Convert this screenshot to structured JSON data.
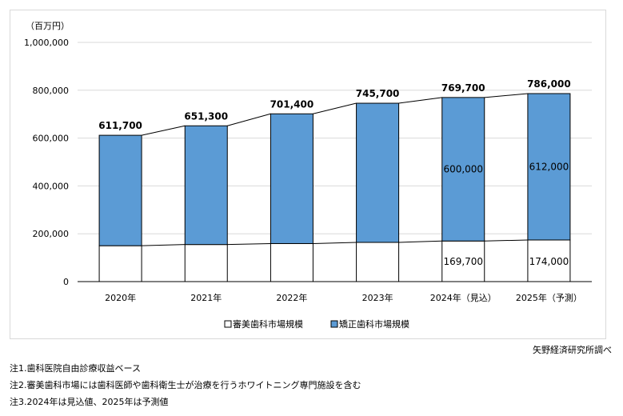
{
  "chart_data": {
    "type": "bar",
    "stacked": true,
    "unit_label": "（百万円）",
    "categories": [
      "2020年",
      "2021年",
      "2022年",
      "2023年",
      "2024年（見込）",
      "2025年（予測）"
    ],
    "series": [
      {
        "name": "審美歯科市場規模",
        "color": "#ffffff",
        "values": [
          150000,
          155000,
          159000,
          164000,
          169700,
          174000
        ],
        "labels": [
          "",
          "",
          "",
          "",
          "169,700",
          "174,000"
        ]
      },
      {
        "name": "矯正歯科市場規模",
        "color": "#5b9bd5",
        "values": [
          461700,
          496300,
          542400,
          581700,
          600000,
          612000
        ],
        "labels": [
          "",
          "",
          "",
          "",
          "600,000",
          "612,000"
        ]
      }
    ],
    "totals": [
      611700,
      651300,
      701400,
      745700,
      769700,
      786000
    ],
    "total_labels": [
      "611,700",
      "651,300",
      "701,400",
      "745,700",
      "769,700",
      "786,000"
    ],
    "ylim": [
      0,
      1000000
    ],
    "yticks": [
      "0",
      "200,000",
      "400,000",
      "600,000",
      "800,000",
      "1,000,000"
    ],
    "grid": true,
    "legend_placement": "bottom"
  },
  "source": "矢野経済研究所調べ",
  "notes": [
    "注1.歯科医院自由診療収益ベース",
    "注2.審美歯科市場には歯科医師や歯科衛生士が治療を行うホワイトニング専門施設を含む",
    "注3.2024年は見込値、2025年は予測値"
  ]
}
